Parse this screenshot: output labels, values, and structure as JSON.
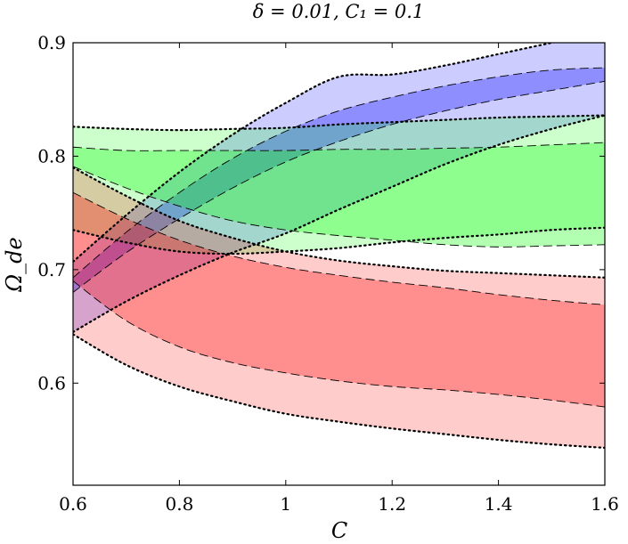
{
  "chart_data": {
    "type": "area",
    "title": "δ = 0.01, C₁ = 0.1",
    "xlabel": "C",
    "ylabel": "Ω_de",
    "xlim": [
      0.6,
      1.6
    ],
    "ylim": [
      0.51,
      0.9
    ],
    "xticks": [
      "0.6",
      "0.8",
      "1",
      "1.2",
      "1.4",
      "1.6"
    ],
    "yticks": [
      "0.6",
      "0.7",
      "0.8",
      "0.9"
    ],
    "grid": false,
    "x": [
      0.6,
      0.7,
      0.8,
      0.9,
      1.0,
      1.1,
      1.2,
      1.3,
      1.4,
      1.5,
      1.6
    ],
    "series": [
      {
        "color": "#0000ff",
        "outer_upper": [
          0.707,
          0.748,
          0.786,
          0.819,
          0.847,
          0.87,
          0.872,
          0.88,
          0.89,
          0.9,
          0.91
        ],
        "inner_upper": [
          0.693,
          0.733,
          0.768,
          0.798,
          0.822,
          0.84,
          0.852,
          0.862,
          0.87,
          0.876,
          0.878
        ],
        "inner_lower": [
          0.68,
          0.715,
          0.745,
          0.772,
          0.795,
          0.813,
          0.828,
          0.84,
          0.85,
          0.858,
          0.866
        ],
        "outer_lower": [
          0.645,
          0.672,
          0.695,
          0.715,
          0.732,
          0.753,
          0.773,
          0.793,
          0.81,
          0.824,
          0.836
        ]
      },
      {
        "color": "#00ff00",
        "outer_upper": [
          0.826,
          0.824,
          0.823,
          0.824,
          0.825,
          0.828,
          0.83,
          0.832,
          0.834,
          0.835,
          0.836
        ],
        "inner_upper": [
          0.808,
          0.805,
          0.805,
          0.805,
          0.805,
          0.806,
          0.806,
          0.807,
          0.808,
          0.81,
          0.812
        ],
        "inner_lower": [
          0.791,
          0.772,
          0.756,
          0.743,
          0.735,
          0.73,
          0.726,
          0.722,
          0.72,
          0.721,
          0.722
        ],
        "outer_lower": [
          0.735,
          0.724,
          0.716,
          0.714,
          0.716,
          0.719,
          0.724,
          0.728,
          0.731,
          0.735,
          0.737
        ]
      },
      {
        "color": "#ff0000",
        "outer_upper": [
          0.79,
          0.765,
          0.743,
          0.728,
          0.716,
          0.708,
          0.703,
          0.699,
          0.697,
          0.695,
          0.693
        ],
        "inner_upper": [
          0.768,
          0.745,
          0.726,
          0.712,
          0.702,
          0.695,
          0.689,
          0.684,
          0.678,
          0.673,
          0.669
        ],
        "inner_lower": [
          0.69,
          0.655,
          0.632,
          0.618,
          0.609,
          0.602,
          0.597,
          0.594,
          0.59,
          0.585,
          0.579
        ],
        "outer_lower": [
          0.643,
          0.616,
          0.597,
          0.584,
          0.573,
          0.566,
          0.56,
          0.555,
          0.55,
          0.546,
          0.543
        ]
      }
    ]
  }
}
